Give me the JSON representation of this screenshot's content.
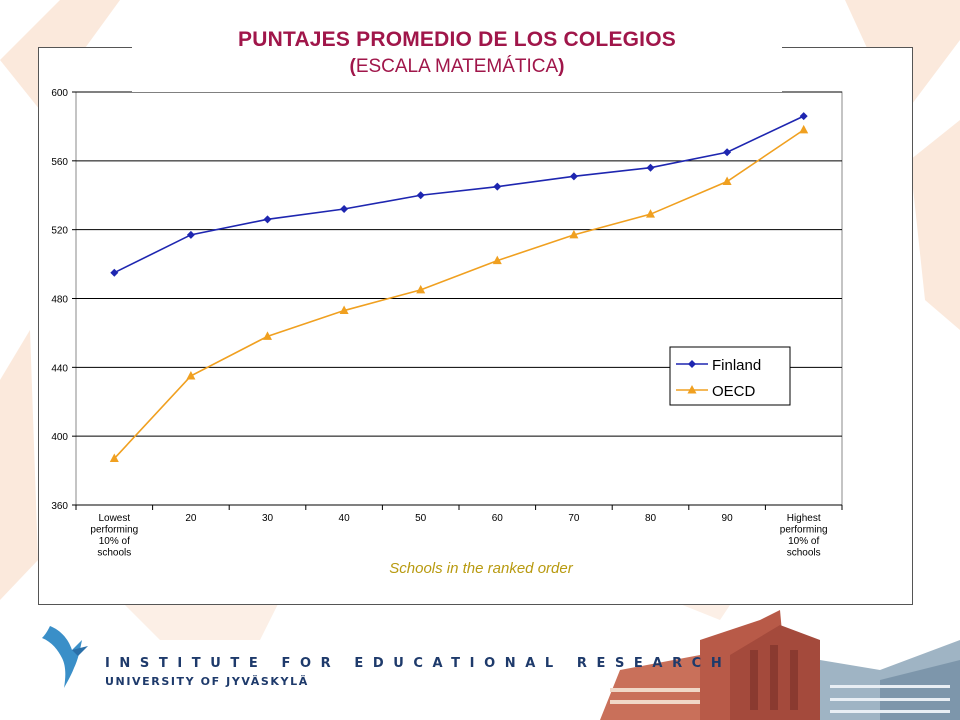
{
  "slide": {
    "title_line1": "PUNTAJES PROMEDIO DE LOS COLEGIOS",
    "title_open_paren": "(",
    "title_line2": "ESCALA MATEMÁTICA",
    "title_close_paren": ")"
  },
  "logo": {
    "institute": "INSTITUTE FOR EDUCATIONAL RESEARCH",
    "university": "UNIVERSITY OF JYVÄSKYLÄ",
    "icon": "bird-logo-icon"
  },
  "colors": {
    "title": "#a0164a",
    "finland": "#1e26b0",
    "oecd": "#f0a020",
    "xlabel": "#b89a10",
    "logo": "#1e3a6b",
    "background_accent": "#fbe9dc"
  },
  "chart_data": {
    "type": "line",
    "xlabel": "Schools in the ranked order",
    "ylabel": "",
    "ylim": [
      360,
      600
    ],
    "yticks": [
      360,
      400,
      440,
      480,
      520,
      560,
      600
    ],
    "grid": true,
    "legend_position": "right",
    "categories": [
      [
        "Lowest",
        "performing",
        "10% of",
        "schools"
      ],
      [
        "20"
      ],
      [
        "30"
      ],
      [
        "40"
      ],
      [
        "50"
      ],
      [
        "60"
      ],
      [
        "70"
      ],
      [
        "80"
      ],
      [
        "90"
      ],
      [
        "Highest",
        "performing",
        "10% of",
        "schools"
      ]
    ],
    "series": [
      {
        "name": "Finland",
        "marker": "diamond",
        "color": "#1e26b0",
        "values": [
          495,
          517,
          526,
          532,
          540,
          545,
          551,
          556,
          565,
          586
        ]
      },
      {
        "name": "OECD",
        "marker": "triangle",
        "color": "#f0a020",
        "values": [
          387,
          435,
          458,
          473,
          485,
          502,
          517,
          529,
          548,
          578
        ]
      }
    ]
  }
}
